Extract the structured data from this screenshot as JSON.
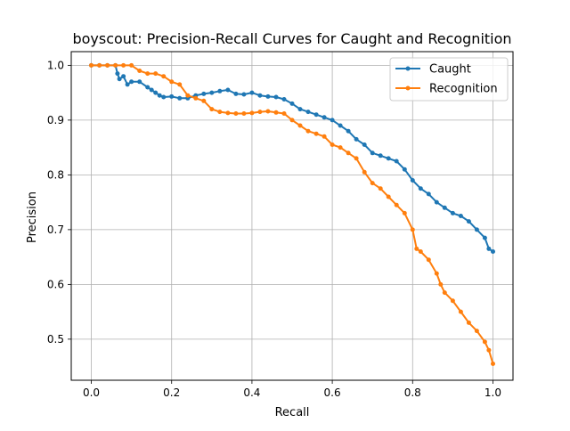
{
  "chart_data": {
    "type": "line",
    "title": "boyscout: Precision-Recall Curves for Caught and Recognition",
    "xlabel": "Recall",
    "ylabel": "Precision",
    "xlim": [
      -0.05,
      1.05
    ],
    "ylim": [
      0.425,
      1.025
    ],
    "xticks": [
      0.0,
      0.2,
      0.4,
      0.6,
      0.8,
      1.0
    ],
    "xtick_labels": [
      "0.0",
      "0.2",
      "0.4",
      "0.6",
      "0.8",
      "1.0"
    ],
    "yticks": [
      0.5,
      0.6,
      0.7,
      0.8,
      0.9,
      1.0
    ],
    "ytick_labels": [
      "0.5",
      "0.6",
      "0.7",
      "0.8",
      "0.9",
      "1.0"
    ],
    "grid": true,
    "legend_position": "top-right",
    "series": [
      {
        "name": "Caught",
        "color": "#1f77b4",
        "x": [
          0.0,
          0.02,
          0.04,
          0.06,
          0.065,
          0.07,
          0.08,
          0.09,
          0.1,
          0.12,
          0.14,
          0.15,
          0.16,
          0.17,
          0.18,
          0.2,
          0.22,
          0.24,
          0.26,
          0.28,
          0.3,
          0.32,
          0.34,
          0.36,
          0.38,
          0.4,
          0.42,
          0.44,
          0.46,
          0.48,
          0.5,
          0.52,
          0.54,
          0.56,
          0.58,
          0.6,
          0.62,
          0.64,
          0.66,
          0.68,
          0.7,
          0.72,
          0.74,
          0.76,
          0.78,
          0.8,
          0.82,
          0.84,
          0.86,
          0.88,
          0.9,
          0.92,
          0.94,
          0.96,
          0.98,
          0.99,
          1.0
        ],
        "y": [
          1.0,
          1.0,
          1.0,
          1.0,
          0.985,
          0.975,
          0.98,
          0.965,
          0.97,
          0.97,
          0.96,
          0.955,
          0.95,
          0.945,
          0.942,
          0.943,
          0.94,
          0.94,
          0.945,
          0.948,
          0.95,
          0.953,
          0.955,
          0.948,
          0.947,
          0.95,
          0.945,
          0.943,
          0.942,
          0.938,
          0.93,
          0.92,
          0.915,
          0.91,
          0.905,
          0.9,
          0.89,
          0.88,
          0.865,
          0.855,
          0.84,
          0.835,
          0.83,
          0.825,
          0.81,
          0.79,
          0.775,
          0.765,
          0.75,
          0.74,
          0.73,
          0.725,
          0.715,
          0.7,
          0.685,
          0.665,
          0.66
        ]
      },
      {
        "name": "Recognition",
        "color": "#ff7f0e",
        "x": [
          0.0,
          0.02,
          0.04,
          0.06,
          0.08,
          0.1,
          0.12,
          0.14,
          0.16,
          0.18,
          0.2,
          0.22,
          0.24,
          0.26,
          0.28,
          0.3,
          0.32,
          0.34,
          0.36,
          0.38,
          0.4,
          0.42,
          0.44,
          0.46,
          0.48,
          0.5,
          0.52,
          0.54,
          0.56,
          0.58,
          0.6,
          0.62,
          0.64,
          0.66,
          0.68,
          0.7,
          0.72,
          0.74,
          0.76,
          0.78,
          0.8,
          0.81,
          0.82,
          0.84,
          0.86,
          0.87,
          0.88,
          0.9,
          0.92,
          0.94,
          0.96,
          0.98,
          0.99,
          1.0
        ],
        "y": [
          1.0,
          1.0,
          1.0,
          1.0,
          1.0,
          1.0,
          0.99,
          0.985,
          0.985,
          0.98,
          0.97,
          0.965,
          0.945,
          0.94,
          0.935,
          0.92,
          0.915,
          0.913,
          0.912,
          0.912,
          0.913,
          0.915,
          0.916,
          0.914,
          0.912,
          0.9,
          0.89,
          0.88,
          0.875,
          0.87,
          0.855,
          0.85,
          0.84,
          0.83,
          0.805,
          0.785,
          0.775,
          0.76,
          0.745,
          0.73,
          0.7,
          0.665,
          0.66,
          0.645,
          0.62,
          0.6,
          0.585,
          0.57,
          0.55,
          0.53,
          0.515,
          0.495,
          0.48,
          0.455
        ]
      }
    ]
  }
}
